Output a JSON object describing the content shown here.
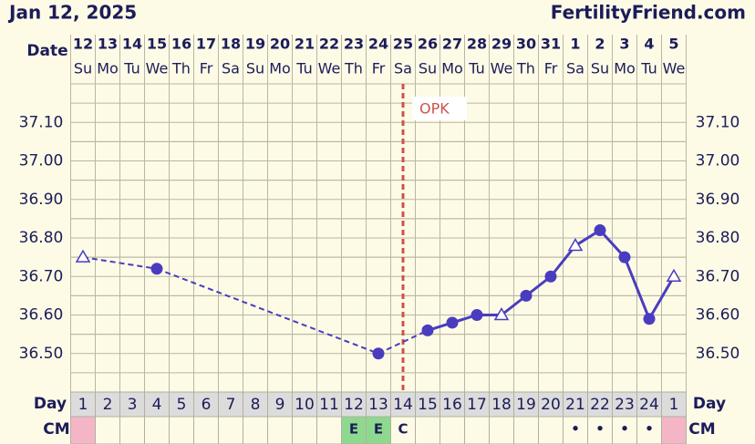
{
  "chart_data": {
    "type": "line",
    "title": "Jan 12, 2025",
    "source": "FertilityFriend.com",
    "date_label": "Date",
    "categories": [
      "12",
      "13",
      "14",
      "15",
      "16",
      "17",
      "18",
      "19",
      "20",
      "21",
      "22",
      "23",
      "24",
      "25",
      "26",
      "27",
      "28",
      "29",
      "30",
      "31",
      "1",
      "2",
      "3",
      "4",
      "5"
    ],
    "weekdays": [
      "Su",
      "Mo",
      "Tu",
      "We",
      "Th",
      "Fr",
      "Sa",
      "Su",
      "Mo",
      "Tu",
      "We",
      "Th",
      "Fr",
      "Sa",
      "Su",
      "Mo",
      "Tu",
      "We",
      "Th",
      "Fr",
      "Sa",
      "Su",
      "Mo",
      "Tu",
      "We"
    ],
    "series": [
      {
        "color": "#4a3cbf",
        "values": [
          36.75,
          null,
          null,
          36.72,
          null,
          null,
          null,
          null,
          null,
          null,
          null,
          null,
          36.5,
          null,
          36.56,
          36.58,
          36.6,
          36.6,
          36.65,
          36.7,
          36.78,
          36.82,
          36.75,
          36.59,
          36.7
        ],
        "markers": [
          "triangle",
          null,
          null,
          "circle",
          null,
          null,
          null,
          null,
          null,
          null,
          null,
          null,
          "circle",
          null,
          "circle",
          "circle",
          "circle",
          "triangle",
          "circle",
          "circle",
          "triangle",
          "circle",
          "circle",
          "circle",
          "triangle"
        ]
      }
    ],
    "ylim": [
      36.4,
      37.2
    ],
    "yticks": [
      {
        "value": 36.5,
        "label": "36.50"
      },
      {
        "value": 36.6,
        "label": "36.60"
      },
      {
        "value": 36.7,
        "label": "36.70"
      },
      {
        "value": 36.8,
        "label": "36.80"
      },
      {
        "value": 36.9,
        "label": "36.90"
      },
      {
        "value": 37.0,
        "label": "37.00"
      },
      {
        "value": 37.1,
        "label": "37.10"
      }
    ],
    "grid": true,
    "annotation": {
      "label": "OPK",
      "index": 13,
      "color": "#d0504a"
    },
    "day_label": "Day",
    "days": [
      1,
      2,
      3,
      4,
      5,
      6,
      7,
      8,
      9,
      10,
      11,
      12,
      13,
      14,
      15,
      16,
      17,
      18,
      19,
      20,
      21,
      22,
      23,
      24,
      1
    ],
    "cm_label": "CM",
    "cm": [
      null,
      null,
      null,
      null,
      null,
      null,
      null,
      null,
      null,
      null,
      null,
      "E",
      "E",
      "C",
      null,
      null,
      null,
      null,
      null,
      null,
      "•",
      "•",
      "•",
      "•",
      null
    ],
    "cm_fill": [
      "#f4b6c6",
      null,
      null,
      null,
      null,
      null,
      null,
      null,
      null,
      null,
      null,
      "#8fd88f",
      "#8fd88f",
      null,
      null,
      null,
      null,
      null,
      null,
      null,
      null,
      null,
      null,
      null,
      "#f4b6c6"
    ]
  }
}
